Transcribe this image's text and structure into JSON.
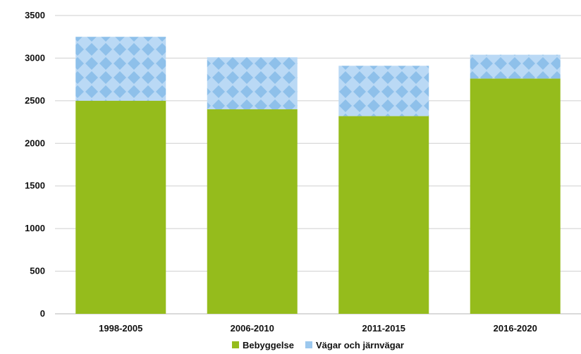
{
  "chart_data": {
    "type": "bar",
    "stacked": true,
    "categories": [
      "1998-2005",
      "2006-2010",
      "2011-2015",
      "2016-2020"
    ],
    "series": [
      {
        "name": "Bebyggelse",
        "values": [
          2500,
          2400,
          2320,
          2760
        ],
        "color": "#95bc1c",
        "pattern": "solid"
      },
      {
        "name": "Vägar och järnvägar",
        "values": [
          750,
          610,
          590,
          280
        ],
        "color": "#9cc8ee",
        "pattern": "diamond"
      }
    ],
    "yticks": [
      0,
      500,
      1000,
      1500,
      2000,
      2500,
      3000,
      3500
    ],
    "ylim": [
      0,
      3500
    ],
    "grid": true,
    "legend_position": "bottom-center"
  }
}
